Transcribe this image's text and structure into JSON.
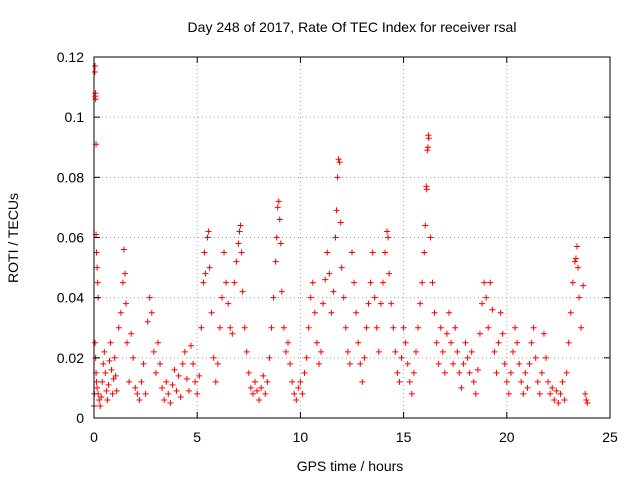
{
  "chart_data": {
    "type": "scatter",
    "title": "Day 248 of 2017, Rate Of TEC Index for receiver rsal",
    "xlabel": "GPS time / hours",
    "ylabel": "ROTI / TECUs",
    "xlim": [
      0,
      25
    ],
    "ylim": [
      0,
      0.12
    ],
    "x_ticks": [
      "0",
      "5",
      "10",
      "15",
      "20",
      "25"
    ],
    "y_ticks": [
      "0",
      "0.02",
      "0.04",
      "0.06",
      "0.08",
      "0.1",
      "0.12"
    ],
    "x_tick_values": [
      0,
      5,
      10,
      15,
      20,
      25
    ],
    "y_tick_values": [
      0,
      0.02,
      0.04,
      0.06,
      0.08,
      0.1,
      0.12
    ],
    "grid": true,
    "marker": "plus",
    "color": "#ff0000",
    "series": [
      {
        "points": [
          [
            0.0,
            0.004
          ],
          [
            0.02,
            0.008
          ],
          [
            0.04,
            0.115
          ],
          [
            0.05,
            0.117
          ],
          [
            0.06,
            0.107
          ],
          [
            0.07,
            0.108
          ],
          [
            0.08,
            0.106
          ],
          [
            0.1,
            0.091
          ],
          [
            0.1,
            0.061
          ],
          [
            0.12,
            0.055
          ],
          [
            0.15,
            0.05
          ],
          [
            0.18,
            0.045
          ],
          [
            0.2,
            0.04
          ],
          [
            0.05,
            0.025
          ],
          [
            0.08,
            0.02
          ],
          [
            0.1,
            0.015
          ],
          [
            0.12,
            0.012
          ],
          [
            0.15,
            0.01
          ],
          [
            0.2,
            0.008
          ],
          [
            0.25,
            0.006
          ],
          [
            0.3,
            0.004
          ],
          [
            0.35,
            0.007
          ],
          [
            0.4,
            0.012
          ],
          [
            0.45,
            0.018
          ],
          [
            0.5,
            0.022
          ],
          [
            0.55,
            0.015
          ],
          [
            0.6,
            0.009
          ],
          [
            0.65,
            0.006
          ],
          [
            0.7,
            0.011
          ],
          [
            0.75,
            0.019
          ],
          [
            0.8,
            0.025
          ],
          [
            0.85,
            0.016
          ],
          [
            0.9,
            0.008
          ],
          [
            0.95,
            0.013
          ],
          [
            1.0,
            0.02
          ],
          [
            1.05,
            0.014
          ],
          [
            1.1,
            0.009
          ],
          [
            1.2,
            0.03
          ],
          [
            1.3,
            0.035
          ],
          [
            1.4,
            0.045
          ],
          [
            1.45,
            0.056
          ],
          [
            1.5,
            0.048
          ],
          [
            1.55,
            0.038
          ],
          [
            1.6,
            0.025
          ],
          [
            1.7,
            0.012
          ],
          [
            1.8,
            0.028
          ],
          [
            1.9,
            0.02
          ],
          [
            2.0,
            0.01
          ],
          [
            2.1,
            0.008
          ],
          [
            2.2,
            0.006
          ],
          [
            2.3,
            0.012
          ],
          [
            2.4,
            0.018
          ],
          [
            2.5,
            0.008
          ],
          [
            2.6,
            0.032
          ],
          [
            2.7,
            0.04
          ],
          [
            2.8,
            0.035
          ],
          [
            2.9,
            0.022
          ],
          [
            3.0,
            0.015
          ],
          [
            3.1,
            0.025
          ],
          [
            3.2,
            0.018
          ],
          [
            3.3,
            0.01
          ],
          [
            3.4,
            0.006
          ],
          [
            3.5,
            0.012
          ],
          [
            3.6,
            0.008
          ],
          [
            3.7,
            0.005
          ],
          [
            3.8,
            0.011
          ],
          [
            3.9,
            0.016
          ],
          [
            4.0,
            0.009
          ],
          [
            4.1,
            0.014
          ],
          [
            4.2,
            0.007
          ],
          [
            4.3,
            0.018
          ],
          [
            4.4,
            0.022
          ],
          [
            4.5,
            0.013
          ],
          [
            4.6,
            0.009
          ],
          [
            4.7,
            0.024
          ],
          [
            4.8,
            0.018
          ],
          [
            4.9,
            0.012
          ],
          [
            5.0,
            0.008
          ],
          [
            5.1,
            0.014
          ],
          [
            5.2,
            0.03
          ],
          [
            5.3,
            0.045
          ],
          [
            5.35,
            0.055
          ],
          [
            5.4,
            0.048
          ],
          [
            5.5,
            0.06
          ],
          [
            5.55,
            0.062
          ],
          [
            5.6,
            0.05
          ],
          [
            5.7,
            0.035
          ],
          [
            5.8,
            0.02
          ],
          [
            5.9,
            0.012
          ],
          [
            6.0,
            0.018
          ],
          [
            6.1,
            0.03
          ],
          [
            6.2,
            0.04
          ],
          [
            6.3,
            0.055
          ],
          [
            6.4,
            0.045
          ],
          [
            6.5,
            0.038
          ],
          [
            6.6,
            0.03
          ],
          [
            6.7,
            0.028
          ],
          [
            6.8,
            0.045
          ],
          [
            6.9,
            0.052
          ],
          [
            7.0,
            0.058
          ],
          [
            7.05,
            0.062
          ],
          [
            7.1,
            0.064
          ],
          [
            7.15,
            0.055
          ],
          [
            7.2,
            0.042
          ],
          [
            7.3,
            0.03
          ],
          [
            7.4,
            0.022
          ],
          [
            7.5,
            0.015
          ],
          [
            7.6,
            0.01
          ],
          [
            7.7,
            0.008
          ],
          [
            7.8,
            0.012
          ],
          [
            7.9,
            0.009
          ],
          [
            8.0,
            0.006
          ],
          [
            8.1,
            0.01
          ],
          [
            8.2,
            0.014
          ],
          [
            8.3,
            0.008
          ],
          [
            8.4,
            0.012
          ],
          [
            8.5,
            0.02
          ],
          [
            8.6,
            0.03
          ],
          [
            8.7,
            0.04
          ],
          [
            8.8,
            0.052
          ],
          [
            8.85,
            0.06
          ],
          [
            8.9,
            0.07
          ],
          [
            8.95,
            0.072
          ],
          [
            9.0,
            0.066
          ],
          [
            9.05,
            0.058
          ],
          [
            9.1,
            0.042
          ],
          [
            9.2,
            0.03
          ],
          [
            9.3,
            0.022
          ],
          [
            9.4,
            0.025
          ],
          [
            9.5,
            0.018
          ],
          [
            9.6,
            0.012
          ],
          [
            9.7,
            0.008
          ],
          [
            9.8,
            0.006
          ],
          [
            9.9,
            0.01
          ],
          [
            10.0,
            0.012
          ],
          [
            10.1,
            0.008
          ],
          [
            10.2,
            0.015
          ],
          [
            10.3,
            0.02
          ],
          [
            10.4,
            0.03
          ],
          [
            10.5,
            0.04
          ],
          [
            10.6,
            0.045
          ],
          [
            10.7,
            0.035
          ],
          [
            10.8,
            0.025
          ],
          [
            10.9,
            0.018
          ],
          [
            11.0,
            0.022
          ],
          [
            11.1,
            0.038
          ],
          [
            11.2,
            0.046
          ],
          [
            11.3,
            0.055
          ],
          [
            11.4,
            0.048
          ],
          [
            11.5,
            0.035
          ],
          [
            11.6,
            0.042
          ],
          [
            11.7,
            0.06
          ],
          [
            11.75,
            0.069
          ],
          [
            11.8,
            0.08
          ],
          [
            11.85,
            0.086
          ],
          [
            11.9,
            0.085
          ],
          [
            11.95,
            0.065
          ],
          [
            12.0,
            0.05
          ],
          [
            12.1,
            0.04
          ],
          [
            12.2,
            0.03
          ],
          [
            12.3,
            0.022
          ],
          [
            12.4,
            0.018
          ],
          [
            12.5,
            0.055
          ],
          [
            12.6,
            0.045
          ],
          [
            12.7,
            0.035
          ],
          [
            12.8,
            0.025
          ],
          [
            12.9,
            0.018
          ],
          [
            13.0,
            0.012
          ],
          [
            13.1,
            0.02
          ],
          [
            13.2,
            0.03
          ],
          [
            13.3,
            0.038
          ],
          [
            13.4,
            0.045
          ],
          [
            13.5,
            0.055
          ],
          [
            13.6,
            0.04
          ],
          [
            13.7,
            0.03
          ],
          [
            13.8,
            0.022
          ],
          [
            13.9,
            0.038
          ],
          [
            14.0,
            0.045
          ],
          [
            14.1,
            0.055
          ],
          [
            14.2,
            0.062
          ],
          [
            14.25,
            0.06
          ],
          [
            14.3,
            0.048
          ],
          [
            14.4,
            0.038
          ],
          [
            14.5,
            0.03
          ],
          [
            14.6,
            0.022
          ],
          [
            14.7,
            0.015
          ],
          [
            14.8,
            0.012
          ],
          [
            14.9,
            0.02
          ],
          [
            15.0,
            0.03
          ],
          [
            15.1,
            0.025
          ],
          [
            15.2,
            0.018
          ],
          [
            15.3,
            0.012
          ],
          [
            15.4,
            0.008
          ],
          [
            15.5,
            0.015
          ],
          [
            15.6,
            0.022
          ],
          [
            15.7,
            0.03
          ],
          [
            15.8,
            0.038
          ],
          [
            15.9,
            0.045
          ],
          [
            16.0,
            0.055
          ],
          [
            16.05,
            0.064
          ],
          [
            16.1,
            0.077
          ],
          [
            16.12,
            0.076
          ],
          [
            16.15,
            0.089
          ],
          [
            16.18,
            0.09
          ],
          [
            16.2,
            0.094
          ],
          [
            16.22,
            0.093
          ],
          [
            16.3,
            0.06
          ],
          [
            16.4,
            0.045
          ],
          [
            16.5,
            0.035
          ],
          [
            16.6,
            0.025
          ],
          [
            16.7,
            0.018
          ],
          [
            16.8,
            0.03
          ],
          [
            16.9,
            0.022
          ],
          [
            17.0,
            0.015
          ],
          [
            17.1,
            0.028
          ],
          [
            17.2,
            0.035
          ],
          [
            17.3,
            0.025
          ],
          [
            17.4,
            0.018
          ],
          [
            17.5,
            0.03
          ],
          [
            17.6,
            0.022
          ],
          [
            17.7,
            0.015
          ],
          [
            17.8,
            0.01
          ],
          [
            17.9,
            0.018
          ],
          [
            18.0,
            0.025
          ],
          [
            18.1,
            0.02
          ],
          [
            18.2,
            0.015
          ],
          [
            18.3,
            0.022
          ],
          [
            18.4,
            0.012
          ],
          [
            18.5,
            0.008
          ],
          [
            18.6,
            0.016
          ],
          [
            18.7,
            0.028
          ],
          [
            18.8,
            0.038
          ],
          [
            18.9,
            0.045
          ],
          [
            19.0,
            0.04
          ],
          [
            19.1,
            0.03
          ],
          [
            19.2,
            0.045
          ],
          [
            19.3,
            0.036
          ],
          [
            19.4,
            0.022
          ],
          [
            19.5,
            0.015
          ],
          [
            19.6,
            0.025
          ],
          [
            19.7,
            0.035
          ],
          [
            19.8,
            0.028
          ],
          [
            19.9,
            0.018
          ],
          [
            20.0,
            0.012
          ],
          [
            20.1,
            0.008
          ],
          [
            20.2,
            0.015
          ],
          [
            20.3,
            0.022
          ],
          [
            20.4,
            0.03
          ],
          [
            20.5,
            0.025
          ],
          [
            20.6,
            0.018
          ],
          [
            20.7,
            0.012
          ],
          [
            20.8,
            0.008
          ],
          [
            20.9,
            0.015
          ],
          [
            21.0,
            0.01
          ],
          [
            21.1,
            0.018
          ],
          [
            21.2,
            0.025
          ],
          [
            21.3,
            0.03
          ],
          [
            21.4,
            0.02
          ],
          [
            21.5,
            0.012
          ],
          [
            21.6,
            0.008
          ],
          [
            21.7,
            0.015
          ],
          [
            21.8,
            0.028
          ],
          [
            21.9,
            0.02
          ],
          [
            22.0,
            0.012
          ],
          [
            22.1,
            0.008
          ],
          [
            22.2,
            0.01
          ],
          [
            22.3,
            0.006
          ],
          [
            22.4,
            0.009
          ],
          [
            22.5,
            0.005
          ],
          [
            22.6,
            0.008
          ],
          [
            22.7,
            0.012
          ],
          [
            22.8,
            0.006
          ],
          [
            22.9,
            0.015
          ],
          [
            23.0,
            0.025
          ],
          [
            23.1,
            0.035
          ],
          [
            23.2,
            0.045
          ],
          [
            23.3,
            0.052
          ],
          [
            23.35,
            0.053
          ],
          [
            23.4,
            0.057
          ],
          [
            23.45,
            0.05
          ],
          [
            23.5,
            0.04
          ],
          [
            23.6,
            0.03
          ],
          [
            23.7,
            0.044
          ],
          [
            23.8,
            0.008
          ],
          [
            23.85,
            0.006
          ],
          [
            23.9,
            0.005
          ]
        ]
      }
    ]
  }
}
